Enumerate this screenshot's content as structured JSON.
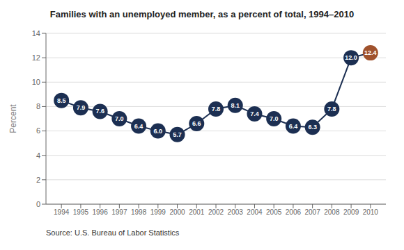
{
  "chart_data": {
    "type": "line",
    "title": "Families with an unemployed member, as a percent of total, 1994–2010",
    "y_label": "Percent",
    "x": [
      1994,
      1995,
      1996,
      1997,
      1998,
      1999,
      2000,
      2001,
      2002,
      2003,
      2004,
      2005,
      2006,
      2007,
      2008,
      2009,
      2010
    ],
    "values": [
      8.5,
      7.9,
      7.6,
      7.0,
      6.4,
      6.0,
      5.7,
      6.6,
      7.8,
      8.1,
      7.4,
      7.0,
      6.4,
      6.3,
      7.8,
      12.0,
      12.4
    ],
    "value_labels": [
      "8.5",
      "7.9",
      "7.6",
      "7.0",
      "6.4",
      "6.0",
      "5.7",
      "6.6",
      "7.8",
      "8.1",
      "7.4",
      "7.0",
      "6.4",
      "6.3",
      "7.8",
      "12.0",
      "12.4"
    ],
    "data_labels": true,
    "color": "#1C2F52",
    "colors": [
      "#1C2F52",
      "#1C2F52",
      "#1C2F52",
      "#1C2F52",
      "#1C2F52",
      "#1C2F52",
      "#1C2F52",
      "#1C2F52",
      "#1C2F52",
      "#1C2F52",
      "#1C2F52",
      "#1C2F52",
      "#1C2F52",
      "#1C2F52",
      "#1C2F52",
      "#1C2F52",
      "#A0522D"
    ],
    "marker": "o",
    "xlim": [
      1993.2,
      2010.8
    ],
    "xticks": [
      1994,
      1995,
      1996,
      1997,
      1998,
      1999,
      2000,
      2001,
      2002,
      2003,
      2004,
      2005,
      2006,
      2007,
      2008,
      2009,
      2010
    ],
    "ylim": [
      0,
      14
    ],
    "yticks": [
      0,
      2,
      4,
      6,
      8,
      10,
      12,
      14
    ],
    "grid": "y",
    "annotations": [
      "Source: U.S. Bureau of Labor Statistics"
    ]
  }
}
